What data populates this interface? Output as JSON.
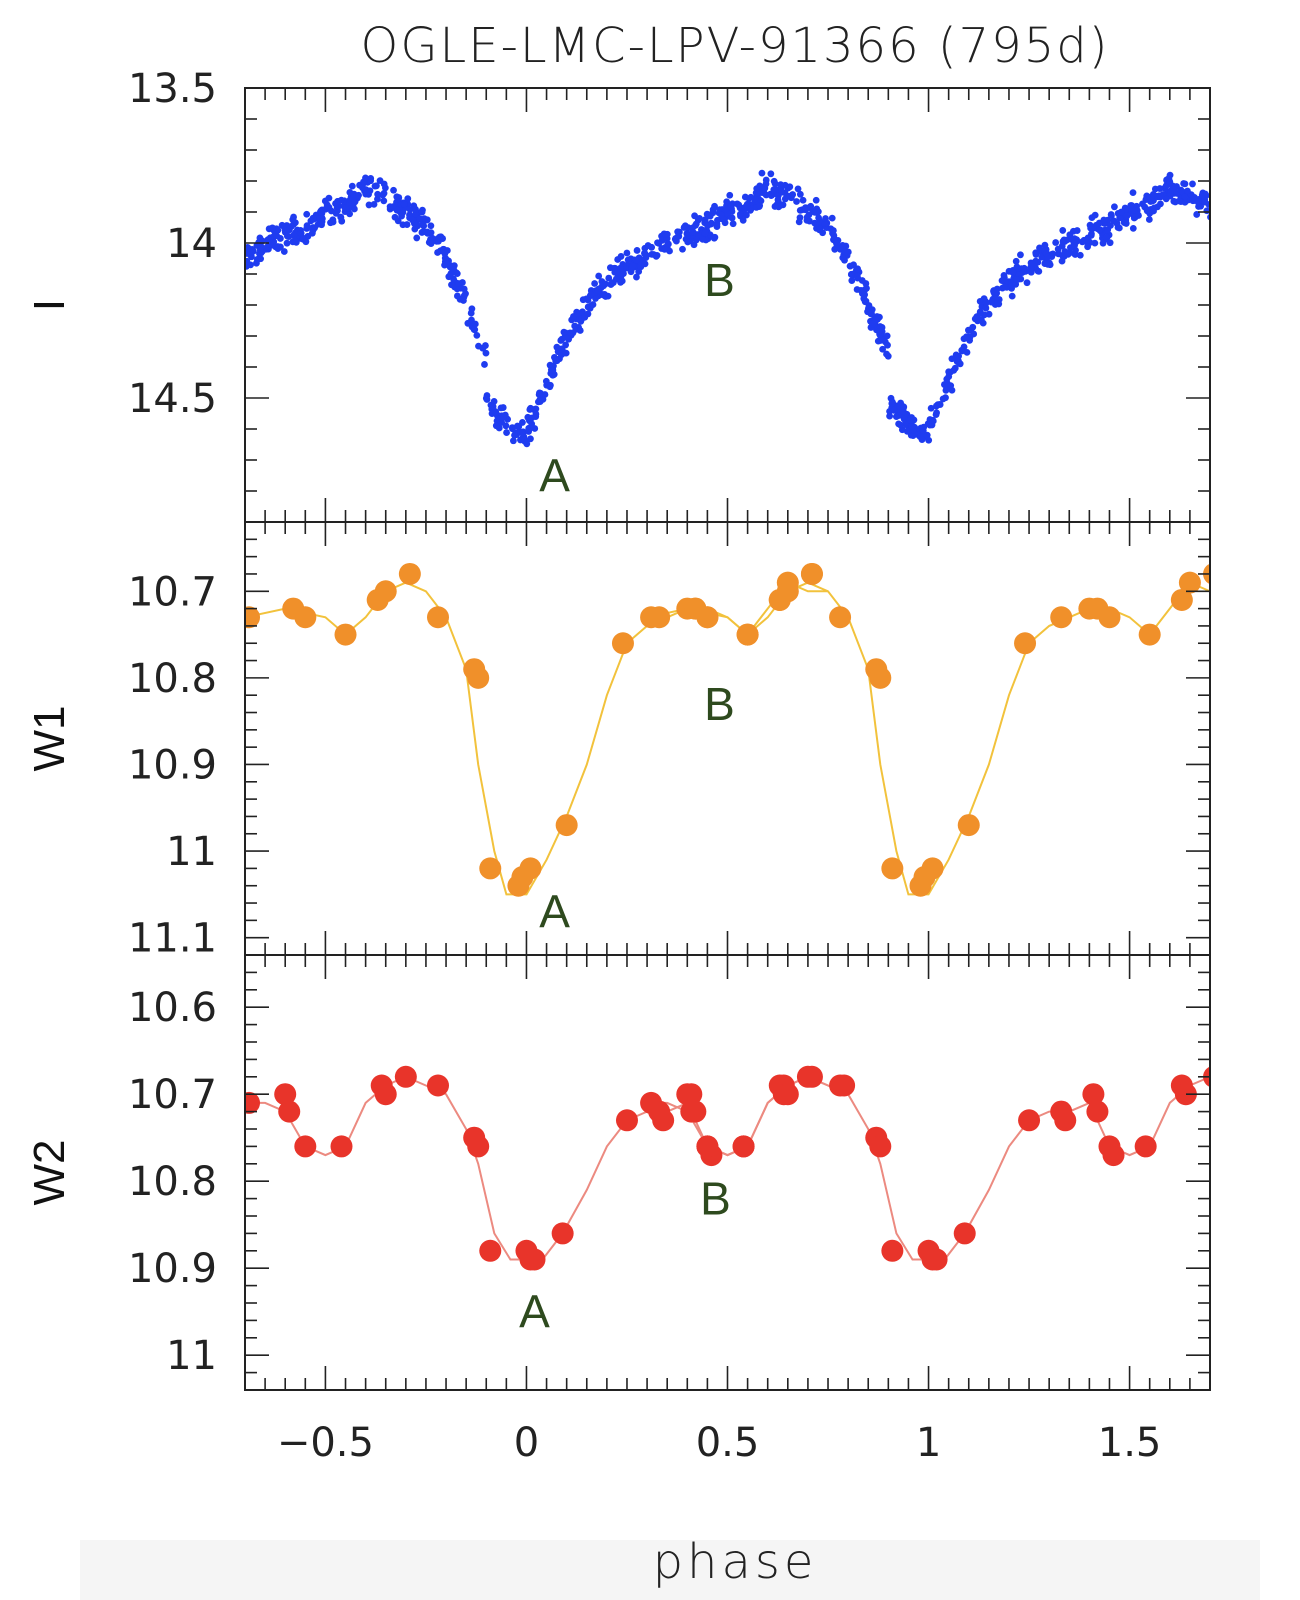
{
  "chart_data": {
    "type": "scatter",
    "title": "OGLE-LMC-LPV-91366 (795d)",
    "xlabel": "phase",
    "xlim": [
      -0.7,
      1.7
    ],
    "xticks": [
      -0.5,
      0,
      0.5,
      1,
      1.5
    ],
    "xtick_labels": [
      "−0.5",
      "0",
      "0.5",
      "1",
      "1.5"
    ],
    "panels": [
      {
        "id": "I",
        "ylabel": "I",
        "ylim": [
          13.5,
          14.9
        ],
        "inverted": true,
        "yticks": [
          13.5,
          14,
          14.5
        ],
        "ytick_labels": [
          "13.5",
          "14",
          "14.5"
        ],
        "color": "#1f3cf0",
        "marker": "small-dots",
        "envelope": {
          "x": [
            -0.1,
            -0.05,
            -0.02,
            0.0,
            0.02,
            0.05,
            0.1,
            0.15,
            0.2,
            0.25,
            0.3,
            0.35,
            0.4,
            0.45,
            0.5,
            0.55,
            0.6,
            0.65,
            0.7,
            0.75,
            0.8,
            0.85,
            0.9
          ],
          "y": [
            14.5,
            14.58,
            14.62,
            14.6,
            14.55,
            14.45,
            14.3,
            14.2,
            14.12,
            14.08,
            14.04,
            14.0,
            13.97,
            13.95,
            13.9,
            13.88,
            13.82,
            13.85,
            13.9,
            13.95,
            14.05,
            14.2,
            14.35
          ]
        },
        "annotations": [
          {
            "text": "A",
            "x": 0.07,
            "y": 14.75
          },
          {
            "text": "B",
            "x": 0.48,
            "y": 14.12
          }
        ]
      },
      {
        "id": "W1",
        "ylabel": "W1",
        "ylim": [
          10.62,
          11.12
        ],
        "inverted": true,
        "yticks": [
          10.7,
          10.8,
          10.9,
          11,
          11.1
        ],
        "ytick_labels": [
          "10.7",
          "10.8",
          "10.9",
          "11",
          "11.1"
        ],
        "color": "#f0902a",
        "line_color": "#f2c23c",
        "marker": "large-dots",
        "points": {
          "x": [
            -0.69,
            -0.58,
            -0.55,
            -0.45,
            -0.37,
            -0.35,
            -0.29,
            -0.22,
            -0.13,
            -0.12,
            -0.09,
            -0.02,
            -0.01,
            0.01,
            0.1,
            0.24,
            0.33,
            0.4,
            0.42,
            0.45,
            0.55,
            0.63,
            0.65,
            0.71
          ],
          "y": [
            10.73,
            10.72,
            10.73,
            10.75,
            10.71,
            10.7,
            10.68,
            10.73,
            10.79,
            10.8,
            11.02,
            11.04,
            11.03,
            11.02,
            10.97,
            10.76,
            10.73,
            10.72,
            10.72,
            10.73,
            10.75,
            10.71,
            10.69,
            10.68
          ]
        },
        "curve": {
          "x": [
            -0.7,
            -0.6,
            -0.5,
            -0.45,
            -0.4,
            -0.35,
            -0.3,
            -0.25,
            -0.2,
            -0.15,
            -0.12,
            -0.08,
            -0.05,
            0.0,
            0.05,
            0.1,
            0.15,
            0.2,
            0.25,
            0.3,
            0.35,
            0.4,
            0.45,
            0.5,
            0.55,
            0.6,
            0.65,
            0.7,
            0.75
          ],
          "y": [
            10.73,
            10.72,
            10.73,
            10.75,
            10.73,
            10.7,
            10.69,
            10.7,
            10.73,
            10.79,
            10.9,
            11.0,
            11.05,
            11.05,
            11.01,
            10.96,
            10.9,
            10.82,
            10.76,
            10.74,
            10.73,
            10.72,
            10.72,
            10.73,
            10.75,
            10.72,
            10.69,
            10.7,
            10.7
          ]
        },
        "annotations": [
          {
            "text": "A",
            "x": 0.07,
            "y": 11.07
          },
          {
            "text": "B",
            "x": 0.48,
            "y": 10.83
          }
        ]
      },
      {
        "id": "W2",
        "ylabel": "W2",
        "ylim": [
          10.54,
          11.04
        ],
        "inverted": true,
        "yticks": [
          10.6,
          10.7,
          10.8,
          10.9,
          11
        ],
        "ytick_labels": [
          "10.6",
          "10.7",
          "10.8",
          "10.9",
          "11"
        ],
        "color": "#e8342a",
        "line_color": "#ec8a80",
        "marker": "large-dots",
        "points": {
          "x": [
            -0.69,
            -0.6,
            -0.59,
            -0.55,
            -0.46,
            -0.36,
            -0.35,
            -0.3,
            -0.22,
            -0.13,
            -0.12,
            -0.09,
            0.0,
            0.01,
            0.02,
            0.09,
            0.25,
            0.33,
            0.34,
            0.41,
            0.42,
            0.45,
            0.46,
            0.54,
            0.63,
            0.64,
            0.71,
            0.79
          ],
          "y": [
            10.71,
            10.7,
            10.72,
            10.76,
            10.76,
            10.69,
            10.7,
            10.68,
            10.69,
            10.75,
            10.76,
            10.88,
            10.88,
            10.89,
            10.89,
            10.86,
            10.73,
            10.72,
            10.73,
            10.7,
            10.72,
            10.76,
            10.77,
            10.76,
            10.69,
            10.7,
            10.68,
            10.69
          ]
        },
        "curve": {
          "x": [
            -0.7,
            -0.65,
            -0.6,
            -0.55,
            -0.5,
            -0.45,
            -0.4,
            -0.35,
            -0.3,
            -0.25,
            -0.2,
            -0.15,
            -0.12,
            -0.08,
            -0.04,
            0.0,
            0.04,
            0.09,
            0.15,
            0.2,
            0.25,
            0.3,
            0.35,
            0.4,
            0.45,
            0.5,
            0.55,
            0.6,
            0.65,
            0.7,
            0.75,
            0.8
          ],
          "y": [
            10.71,
            10.71,
            10.72,
            10.76,
            10.77,
            10.76,
            10.71,
            10.69,
            10.68,
            10.69,
            10.7,
            10.74,
            10.78,
            10.86,
            10.89,
            10.89,
            10.89,
            10.86,
            10.81,
            10.76,
            10.73,
            10.72,
            10.72,
            10.71,
            10.76,
            10.77,
            10.76,
            10.71,
            10.69,
            10.68,
            10.69,
            10.7
          ]
        },
        "annotations": [
          {
            "text": "A",
            "x": 0.02,
            "y": 10.95
          },
          {
            "text": "B",
            "x": 0.47,
            "y": 10.82
          }
        ]
      }
    ]
  }
}
